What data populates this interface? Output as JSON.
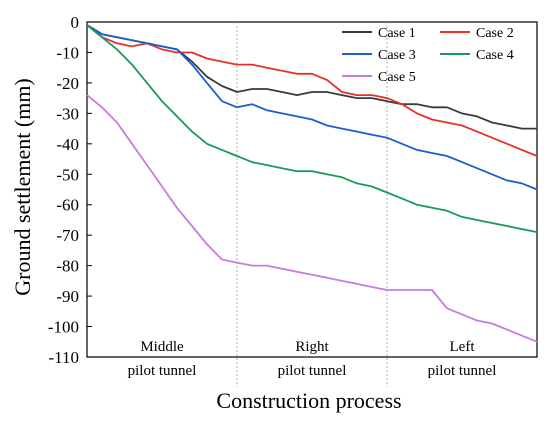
{
  "chart_data": {
    "type": "line",
    "title": "",
    "xlabel": "Construction process",
    "ylabel": "Ground settlement (mm)",
    "ylim": [
      -110,
      0
    ],
    "yticks": [
      0,
      -10,
      -20,
      -30,
      -40,
      -50,
      -60,
      -70,
      -80,
      -90,
      -100,
      -110
    ],
    "xlim": [
      0,
      3
    ],
    "phase_boundaries": [
      1,
      2
    ],
    "phases": [
      {
        "top": "Middle",
        "bottom": "pilot tunnel"
      },
      {
        "top": "Right",
        "bottom": "pilot tunnel"
      },
      {
        "top": "Left",
        "bottom": "pilot tunnel"
      }
    ],
    "legend_position": "top-right",
    "grid": false,
    "series": [
      {
        "name": "Case 1",
        "color": "#3a3a3a",
        "x": [
          0,
          0.1,
          0.2,
          0.3,
          0.4,
          0.5,
          0.6,
          0.7,
          0.8,
          0.9,
          1.0,
          1.1,
          1.2,
          1.3,
          1.4,
          1.5,
          1.6,
          1.7,
          1.8,
          1.9,
          2.0,
          2.1,
          2.2,
          2.3,
          2.4,
          2.5,
          2.6,
          2.7,
          2.8,
          2.9,
          3.0
        ],
        "values": [
          -1,
          -4,
          -5,
          -6,
          -7,
          -8,
          -9,
          -13,
          -18,
          -21,
          -23,
          -22,
          -22,
          -23,
          -24,
          -23,
          -23,
          -24,
          -25,
          -25,
          -26,
          -27,
          -27,
          -28,
          -28,
          -30,
          -31,
          -33,
          -34,
          -35,
          -35
        ]
      },
      {
        "name": "Case 2",
        "color": "#e8302a",
        "x": [
          0,
          0.1,
          0.2,
          0.3,
          0.4,
          0.5,
          0.6,
          0.7,
          0.8,
          0.9,
          1.0,
          1.1,
          1.2,
          1.3,
          1.4,
          1.5,
          1.6,
          1.7,
          1.8,
          1.9,
          2.0,
          2.1,
          2.2,
          2.3,
          2.4,
          2.5,
          2.6,
          2.7,
          2.8,
          2.9,
          3.0
        ],
        "values": [
          -1,
          -5,
          -7,
          -8,
          -7,
          -9,
          -10,
          -10,
          -12,
          -13,
          -14,
          -14,
          -15,
          -16,
          -17,
          -17,
          -19,
          -23,
          -24,
          -24,
          -25,
          -27,
          -30,
          -32,
          -33,
          -34,
          -36,
          -38,
          -40,
          -42,
          -44
        ]
      },
      {
        "name": "Case 3",
        "color": "#1a5fd0",
        "x": [
          0,
          0.1,
          0.2,
          0.3,
          0.4,
          0.5,
          0.6,
          0.7,
          0.8,
          0.9,
          1.0,
          1.1,
          1.2,
          1.3,
          1.4,
          1.5,
          1.6,
          1.7,
          1.8,
          1.9,
          2.0,
          2.1,
          2.2,
          2.3,
          2.4,
          2.5,
          2.6,
          2.7,
          2.8,
          2.9,
          3.0
        ],
        "values": [
          -1,
          -4,
          -5,
          -6,
          -7,
          -8,
          -9,
          -14,
          -20,
          -26,
          -28,
          -27,
          -29,
          -30,
          -31,
          -32,
          -34,
          -35,
          -36,
          -37,
          -38,
          -40,
          -42,
          -43,
          -44,
          -46,
          -48,
          -50,
          -52,
          -53,
          -55
        ]
      },
      {
        "name": "Case 4",
        "color": "#1a9a5a",
        "x": [
          0,
          0.1,
          0.2,
          0.3,
          0.4,
          0.5,
          0.6,
          0.7,
          0.8,
          0.9,
          1.0,
          1.1,
          1.2,
          1.3,
          1.4,
          1.5,
          1.6,
          1.7,
          1.8,
          1.9,
          2.0,
          2.1,
          2.2,
          2.3,
          2.4,
          2.5,
          2.6,
          2.7,
          2.8,
          2.9,
          3.0
        ],
        "values": [
          -1,
          -5,
          -9,
          -14,
          -20,
          -26,
          -31,
          -36,
          -40,
          -42,
          -44,
          -46,
          -47,
          -48,
          -49,
          -49,
          -50,
          -51,
          -53,
          -54,
          -56,
          -58,
          -60,
          -61,
          -62,
          -64,
          -65,
          -66,
          -67,
          -68,
          -69
        ]
      },
      {
        "name": "Case 5",
        "color": "#c37de0",
        "x": [
          0,
          0.1,
          0.2,
          0.3,
          0.4,
          0.5,
          0.6,
          0.7,
          0.8,
          0.9,
          1.0,
          1.1,
          1.2,
          1.3,
          1.4,
          1.5,
          1.6,
          1.7,
          1.8,
          1.9,
          2.0,
          2.1,
          2.2,
          2.3,
          2.4,
          2.5,
          2.6,
          2.7,
          2.8,
          2.9,
          3.0
        ],
        "values": [
          -24,
          -28,
          -33,
          -40,
          -47,
          -54,
          -61,
          -67,
          -73,
          -78,
          -79,
          -80,
          -80,
          -81,
          -82,
          -83,
          -84,
          -85,
          -86,
          -87,
          -88,
          -88,
          -88,
          -88,
          -94,
          -96,
          -98,
          -99,
          -101,
          -103,
          -105
        ]
      }
    ]
  }
}
